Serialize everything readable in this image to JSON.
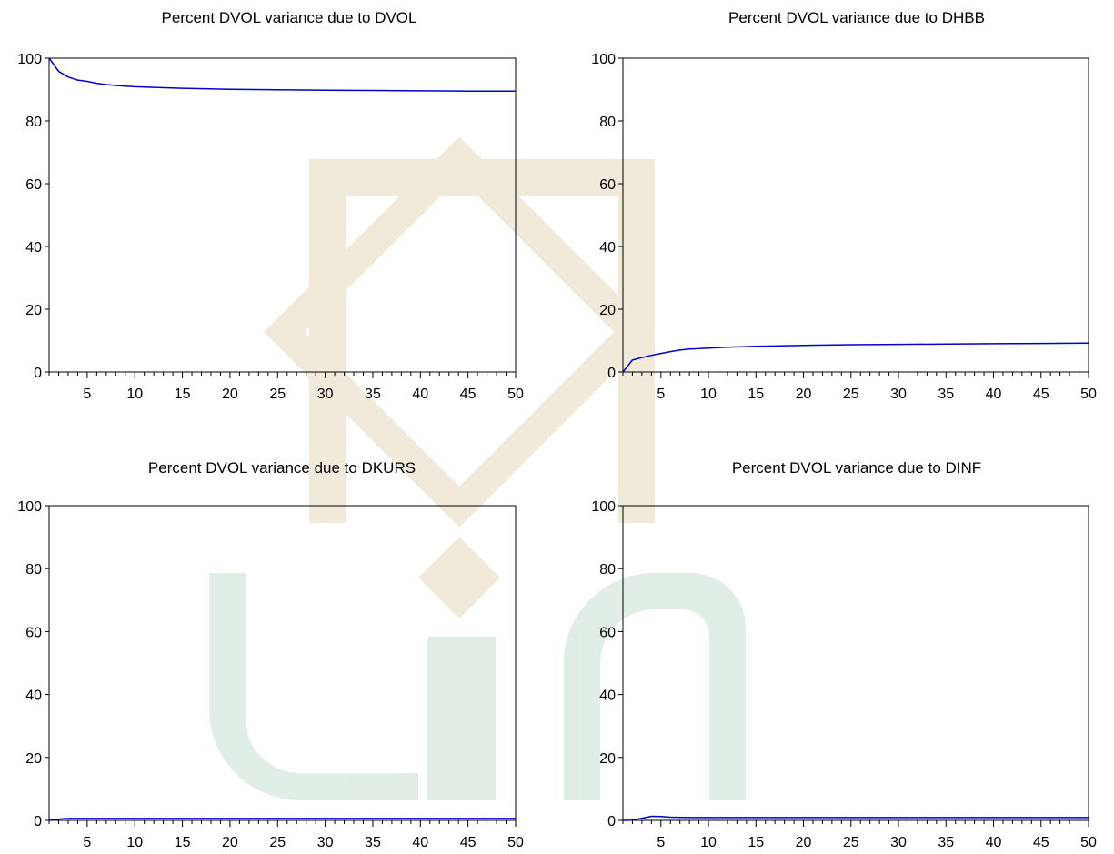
{
  "chart_data": [
    {
      "type": "line",
      "title": "Percent DVOL variance due to DVOL",
      "xlim": [
        1,
        50
      ],
      "ylim": [
        0,
        100
      ],
      "xticks": [
        5,
        10,
        15,
        20,
        25,
        30,
        35,
        40,
        45,
        50
      ],
      "yticks": [
        0,
        20,
        40,
        60,
        80,
        100
      ],
      "color": "#0000cc",
      "x": [
        1,
        2,
        3,
        4,
        5,
        6,
        7,
        8,
        9,
        10,
        12,
        15,
        20,
        25,
        30,
        35,
        40,
        45,
        50
      ],
      "values": [
        100,
        95.8,
        94.0,
        93.0,
        92.6,
        92.0,
        91.6,
        91.3,
        91.1,
        90.9,
        90.7,
        90.4,
        90.1,
        89.9,
        89.8,
        89.7,
        89.6,
        89.5,
        89.5
      ]
    },
    {
      "type": "line",
      "title": "Percent DVOL variance due to DHBB",
      "xlim": [
        1,
        50
      ],
      "ylim": [
        0,
        100
      ],
      "xticks": [
        5,
        10,
        15,
        20,
        25,
        30,
        35,
        40,
        45,
        50
      ],
      "yticks": [
        0,
        20,
        40,
        60,
        80,
        100
      ],
      "color": "#0000cc",
      "x": [
        1,
        2,
        3,
        4,
        5,
        6,
        7,
        8,
        10,
        12,
        15,
        20,
        25,
        30,
        35,
        40,
        45,
        50
      ],
      "values": [
        0,
        3.8,
        4.6,
        5.3,
        5.9,
        6.5,
        7.0,
        7.3,
        7.6,
        7.9,
        8.2,
        8.5,
        8.7,
        8.8,
        8.9,
        9.0,
        9.1,
        9.2
      ]
    },
    {
      "type": "line",
      "title": "Percent DVOL variance due to DKURS",
      "xlim": [
        1,
        50
      ],
      "ylim": [
        0,
        100
      ],
      "xticks": [
        5,
        10,
        15,
        20,
        25,
        30,
        35,
        40,
        45,
        50
      ],
      "yticks": [
        0,
        20,
        40,
        60,
        80,
        100
      ],
      "color": "#0000cc",
      "x": [
        1,
        2,
        3,
        4,
        5,
        10,
        20,
        30,
        40,
        50
      ],
      "values": [
        0,
        0.4,
        0.6,
        0.6,
        0.6,
        0.6,
        0.6,
        0.6,
        0.6,
        0.6
      ]
    },
    {
      "type": "line",
      "title": "Percent DVOL variance due to DINF",
      "xlim": [
        1,
        50
      ],
      "ylim": [
        0,
        100
      ],
      "xticks": [
        5,
        10,
        15,
        20,
        25,
        30,
        35,
        40,
        45,
        50
      ],
      "yticks": [
        0,
        20,
        40,
        60,
        80,
        100
      ],
      "color": "#0000cc",
      "x": [
        1,
        2,
        3,
        4,
        5,
        6,
        8,
        10,
        20,
        30,
        40,
        50
      ],
      "values": [
        0,
        0.1,
        0.7,
        1.3,
        1.2,
        1.0,
        0.9,
        0.9,
        0.9,
        0.9,
        0.9,
        0.9
      ]
    }
  ]
}
